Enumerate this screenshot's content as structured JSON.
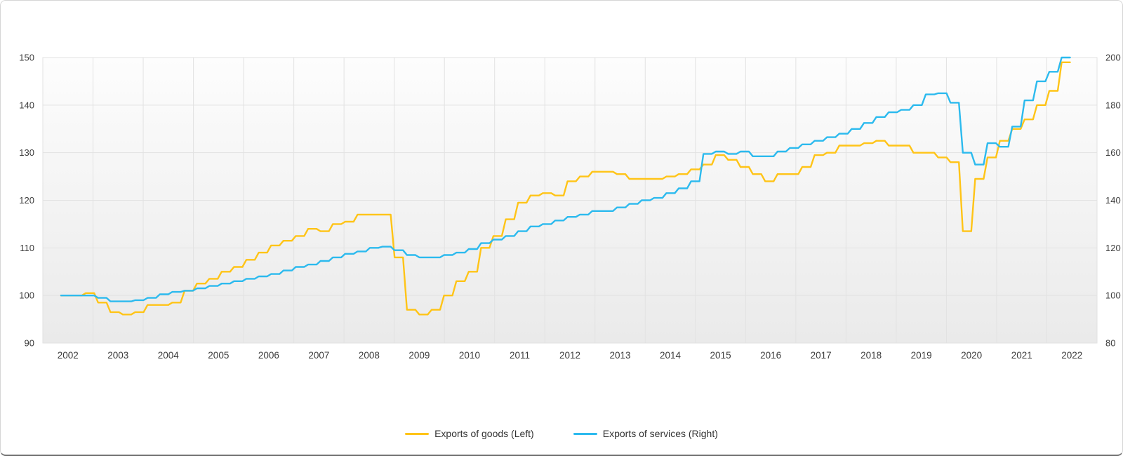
{
  "chart_data": {
    "type": "line",
    "title": "",
    "frequency": "quarterly",
    "periods": "2002Q1 to 2022Q2",
    "x_year_labels": [
      "2002",
      "2003",
      "2004",
      "2005",
      "2006",
      "2007",
      "2008",
      "2009",
      "2010",
      "2011",
      "2012",
      "2013",
      "2014",
      "2015",
      "2016",
      "2017",
      "2018",
      "2019",
      "2020",
      "2021",
      "2022"
    ],
    "left_axis": {
      "min": 90,
      "max": 150,
      "ticks": [
        150,
        140,
        130,
        120,
        110,
        100,
        90
      ]
    },
    "right_axis": {
      "min": 80,
      "max": 200,
      "ticks": [
        200,
        180,
        160,
        140,
        120,
        100,
        80
      ]
    },
    "grid": true,
    "legend_position": "bottom",
    "colors": {
      "goods": "#FFC417",
      "services": "#2CBAEE",
      "gridline": "#e2e2e2",
      "axis_text": "#3c3c3c",
      "plot_bg_top": "#fdfdfd",
      "plot_bg_bottom": "#eaeaea"
    },
    "series": [
      {
        "name": "Exports of goods (Left)",
        "axis": "left",
        "color": "#FFC417",
        "values": [
          100,
          100,
          100.5,
          98.5,
          96.5,
          96,
          96.5,
          98,
          98,
          98.5,
          101,
          102.5,
          103.5,
          105,
          106,
          107.5,
          109,
          110.5,
          111.5,
          112.5,
          114,
          113.5,
          115,
          115.5,
          117,
          117,
          117,
          108,
          97,
          96,
          97,
          100,
          103,
          105,
          110,
          112.5,
          116,
          119.5,
          121,
          121.5,
          121,
          124,
          125,
          126,
          126,
          125.5,
          124.5,
          124.5,
          124.5,
          125,
          125.5,
          126.5,
          127.5,
          129.5,
          128.5,
          127,
          125.5,
          124,
          125.5,
          125.5,
          127,
          129.5,
          130,
          131.5,
          131.5,
          132,
          132.5,
          131.5,
          131.5,
          130,
          130,
          129,
          128,
          113.5,
          124.5,
          129,
          132.5,
          135,
          137,
          140,
          143,
          149
        ]
      },
      {
        "name": "Exports of services (Right)",
        "axis": "right",
        "color": "#2CBAEE",
        "values": [
          100,
          100,
          100,
          99,
          97.5,
          97.5,
          98,
          99,
          100.5,
          101.5,
          102,
          103,
          104,
          105,
          106,
          107,
          108,
          109,
          110.5,
          112,
          113,
          114.5,
          116,
          117.5,
          118.5,
          120,
          120.5,
          119,
          117,
          116,
          116,
          117,
          118,
          119.5,
          122,
          123.5,
          125,
          127,
          129,
          130,
          131.5,
          133,
          134,
          135.5,
          135.5,
          137,
          138.5,
          140,
          141,
          143,
          145,
          148,
          159.5,
          160.5,
          159.5,
          160.5,
          158.5,
          158.5,
          160.5,
          162,
          163.5,
          165,
          166.5,
          168,
          170,
          172.5,
          175,
          177,
          178,
          180,
          184.5,
          185,
          181,
          160,
          155,
          164,
          162.5,
          171,
          182,
          190,
          194,
          200
        ]
      }
    ]
  },
  "legend": {
    "items": [
      {
        "label": "Exports of goods (Left)"
      },
      {
        "label": "Exports of services (Right)"
      }
    ]
  }
}
